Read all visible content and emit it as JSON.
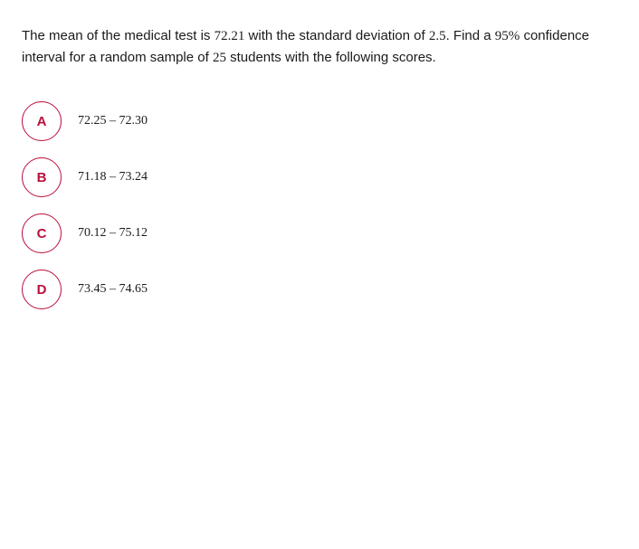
{
  "question": {
    "part1": "The mean of the medical test is ",
    "mean": "72.21",
    "part2": " with the standard deviation of ",
    "stddev": "2.5",
    "part3": ". Find a ",
    "confidence": "95%",
    "part4": " confidence interval for a random sample of ",
    "sample": "25",
    "part5": " students with the following scores."
  },
  "options": [
    {
      "letter": "A",
      "text": "72.25 – 72.30"
    },
    {
      "letter": "B",
      "text": "71.18 – 73.24"
    },
    {
      "letter": "C",
      "text": "70.12 – 75.12"
    },
    {
      "letter": "D",
      "text": "73.45 – 74.65"
    }
  ],
  "colors": {
    "accent": "#b8103b",
    "text": "#1a1a1a",
    "background": "#ffffff"
  }
}
